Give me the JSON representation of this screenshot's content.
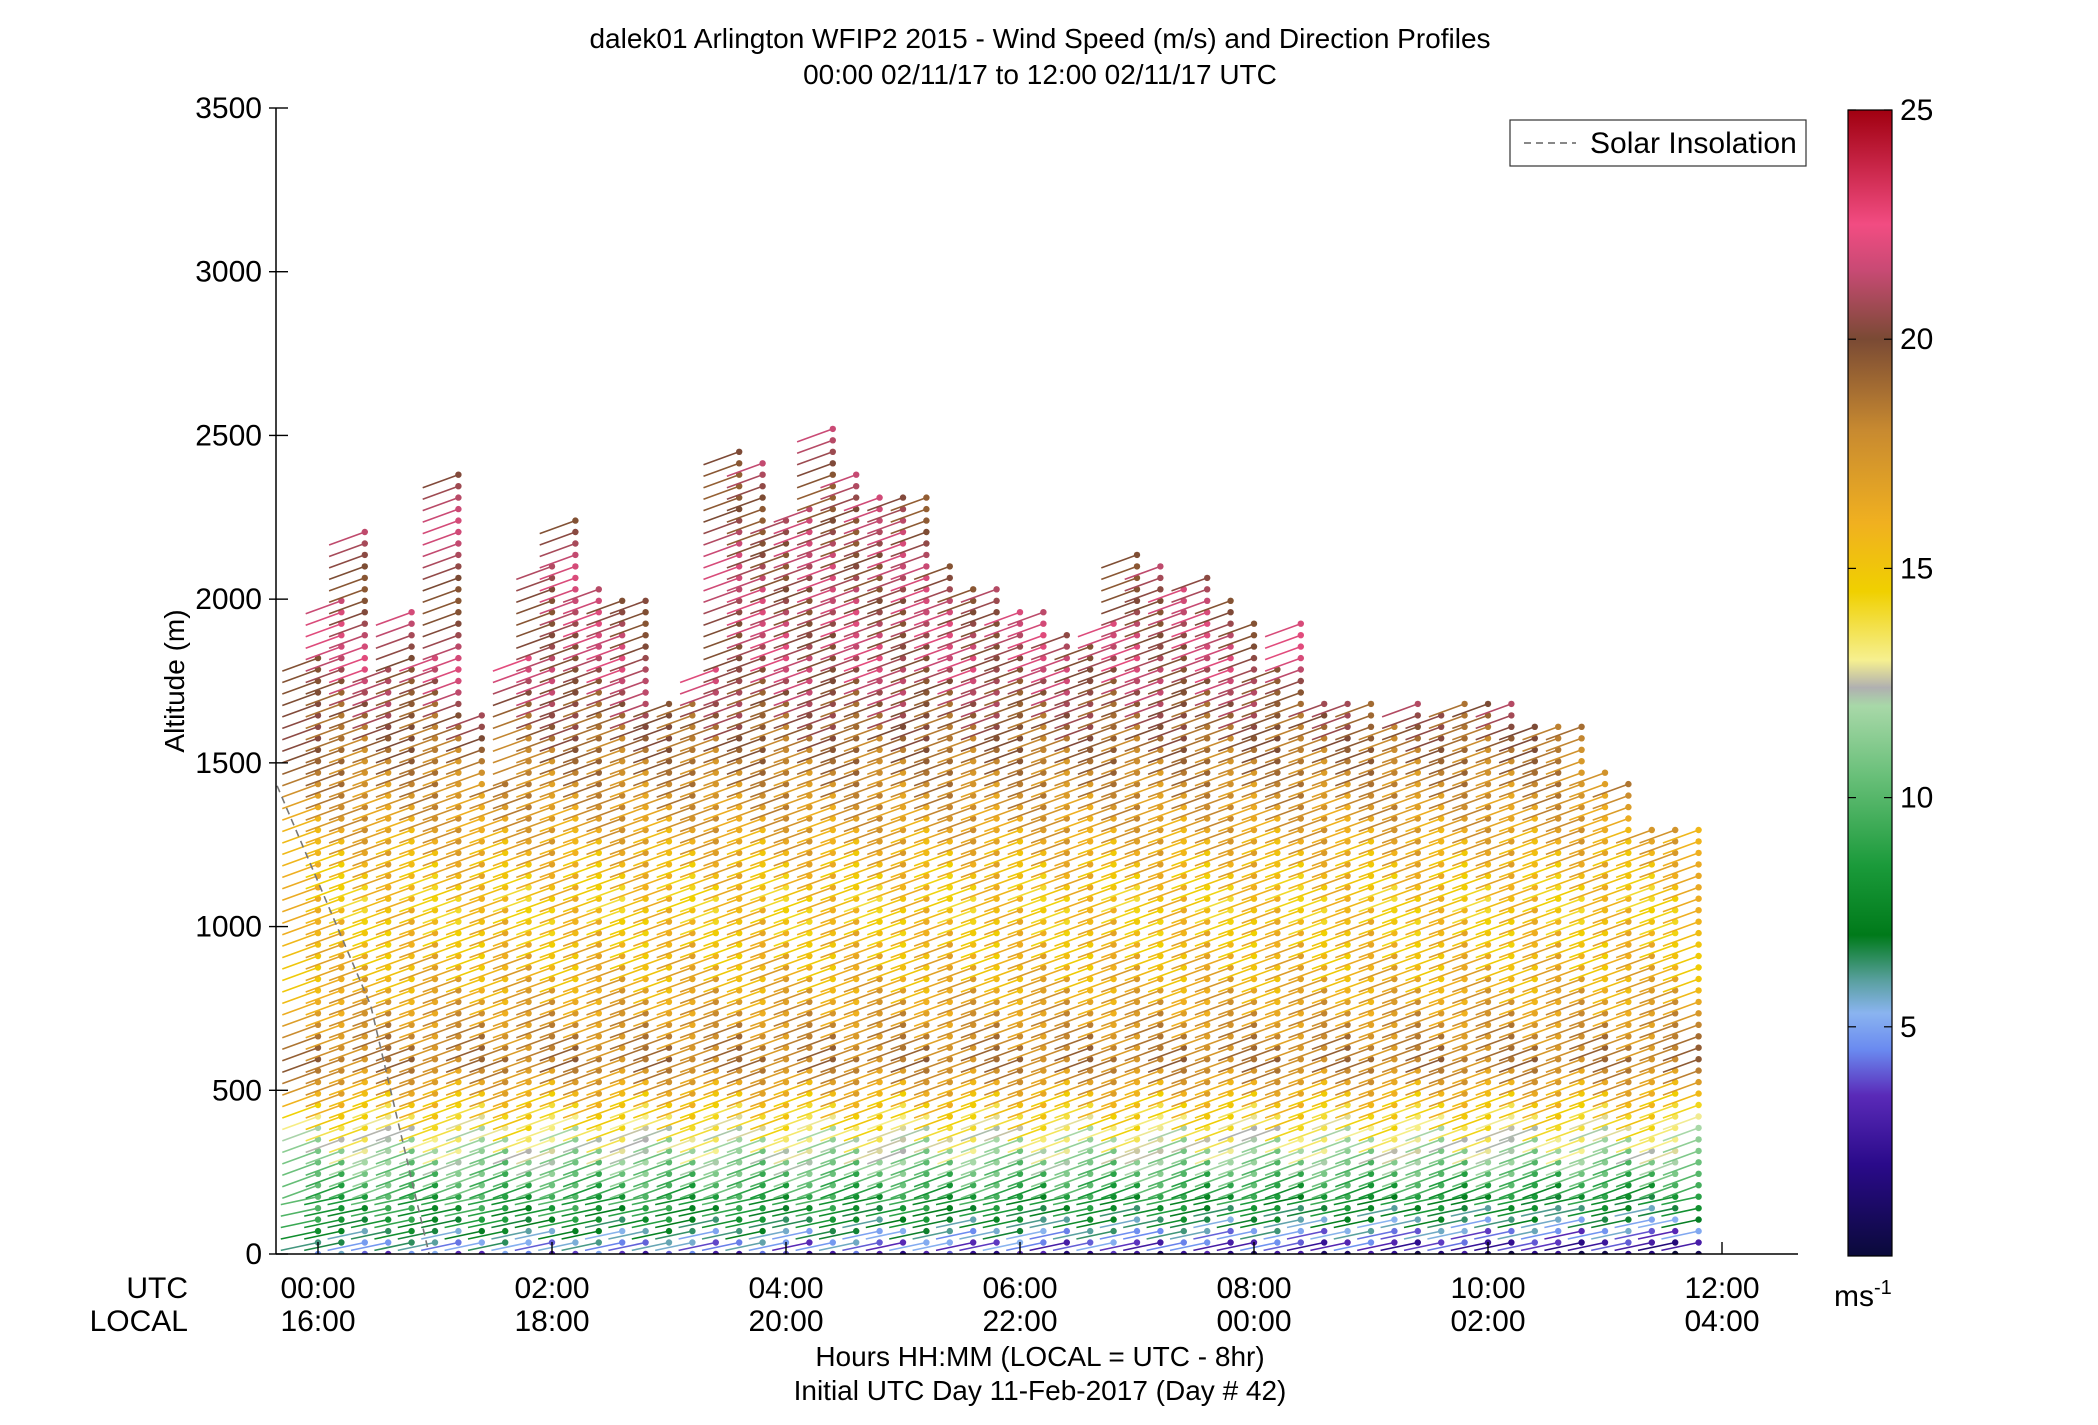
{
  "chart_data": {
    "type": "scatter",
    "title": "dalek01 Arlington WFIP2 2015 - Wind Speed (m/s) and Direction Profiles",
    "subtitle": "00:00 02/11/17 to 12:00 02/11/17  UTC",
    "ylabel": "Altitude (m)",
    "xlabel": "Hours HH:MM  (LOCAL = UTC - 8hr)",
    "xlabel2": "Initial UTC Day 11-Feb-2017 (Day # 42)",
    "ylim": [
      0,
      3500
    ],
    "xlim_hours": [
      -0.35,
      12.1
    ],
    "yticks": [
      0,
      500,
      1000,
      1500,
      2000,
      2500,
      3000,
      3500
    ],
    "xticks_hours": [
      0,
      2,
      4,
      6,
      8,
      10,
      12
    ],
    "row_label_utc": "UTC",
    "row_label_local": "LOCAL",
    "utc_tick_labels": [
      "00:00",
      "02:00",
      "04:00",
      "06:00",
      "08:00",
      "10:00",
      "12:00"
    ],
    "local_tick_labels": [
      "16:00",
      "18:00",
      "20:00",
      "22:00",
      "00:00",
      "02:00",
      "04:00"
    ],
    "legend": {
      "entry": "Solar Insolation",
      "placement": "top-right",
      "style": "dashed gray"
    },
    "colorbar": {
      "range": [
        0,
        25
      ],
      "ticks": [
        5,
        10,
        15,
        20,
        25
      ],
      "unit_text": "ms",
      "unit_exponent": "-1",
      "stops": [
        {
          "v": 0,
          "c": "#0a0a3a"
        },
        {
          "v": 2,
          "c": "#2a0a8a"
        },
        {
          "v": 3.5,
          "c": "#5a2ab8"
        },
        {
          "v": 4.5,
          "c": "#6a8af0"
        },
        {
          "v": 5.3,
          "c": "#8ab4f0"
        },
        {
          "v": 6,
          "c": "#5aa0a0"
        },
        {
          "v": 7,
          "c": "#007a1a"
        },
        {
          "v": 8.5,
          "c": "#1a9a3a"
        },
        {
          "v": 10.5,
          "c": "#6ac07a"
        },
        {
          "v": 12,
          "c": "#a8d8a8"
        },
        {
          "v": 12.4,
          "c": "#b0b0b0"
        },
        {
          "v": 13,
          "c": "#f6f090"
        },
        {
          "v": 14.5,
          "c": "#f0d000"
        },
        {
          "v": 16,
          "c": "#f0b020"
        },
        {
          "v": 18,
          "c": "#c88a30"
        },
        {
          "v": 20,
          "c": "#7a4a34"
        },
        {
          "v": 21.5,
          "c": "#c84a74"
        },
        {
          "v": 22.5,
          "c": "#f24c82"
        },
        {
          "v": 25,
          "c": "#a00010"
        }
      ]
    },
    "profile_times_hours": [
      0.0,
      0.2,
      0.4,
      0.6,
      0.8,
      1.0,
      1.2,
      1.4,
      1.6,
      1.8,
      2.0,
      2.2,
      2.4,
      2.6,
      2.8,
      3.0,
      3.2,
      3.4,
      3.6,
      3.8,
      4.0,
      4.2,
      4.4,
      4.6,
      4.8,
      5.0,
      5.2,
      5.4,
      5.6,
      5.8,
      6.0,
      6.2,
      6.4,
      6.6,
      6.8,
      7.0,
      7.2,
      7.4,
      7.6,
      7.8,
      8.0,
      8.2,
      8.4,
      8.6,
      8.8,
      9.0,
      9.2,
      9.4,
      9.6,
      9.8,
      10.0,
      10.2,
      10.4,
      10.6,
      10.8,
      11.0,
      11.2,
      11.4,
      11.6,
      11.8
    ],
    "profile_top_altitudes_m": [
      1840,
      2000,
      2220,
      1800,
      1980,
      1840,
      2400,
      1650,
      1450,
      1850,
      2100,
      2260,
      2050,
      2000,
      2010,
      1700,
      1700,
      1800,
      2470,
      2420,
      2240,
      2300,
      2540,
      2400,
      2310,
      2310,
      2310,
      2120,
      2060,
      2060,
      1980,
      1980,
      1900,
      1880,
      1950,
      2140,
      2120,
      2040,
      2080,
      2000,
      1950,
      1800,
      1930,
      1690,
      1680,
      1680,
      1640,
      1700,
      1650,
      1700,
      1700,
      1700,
      1630,
      1630,
      1620,
      1490,
      1450,
      1320,
      1310,
      1310
    ],
    "speed_profile_by_altitude": [
      {
        "altitude_m": 0,
        "speed_ms": 4.5
      },
      {
        "altitude_m": 100,
        "speed_ms": 8.0
      },
      {
        "altitude_m": 250,
        "speed_ms": 10.5
      },
      {
        "altitude_m": 400,
        "speed_ms": 13.5
      },
      {
        "altitude_m": 600,
        "speed_ms": 18.5
      },
      {
        "altitude_m": 850,
        "speed_ms": 16.0
      },
      {
        "altitude_m": 1100,
        "speed_ms": 15.0
      },
      {
        "altitude_m": 1400,
        "speed_ms": 17.5
      },
      {
        "altitude_m": 1800,
        "speed_ms": 21.0
      },
      {
        "altitude_m": 2300,
        "speed_ms": 20.5
      }
    ],
    "profile_spacing_m": 35,
    "direction_note": "southwesterly flow aloft; wind direction shown by stick orientation",
    "solar_insolation_line": [
      {
        "hour": -0.35,
        "altitude_m": 1430
      },
      {
        "hour": 0.45,
        "altitude_m": 760
      },
      {
        "hour": 0.95,
        "altitude_m": 0
      }
    ]
  }
}
